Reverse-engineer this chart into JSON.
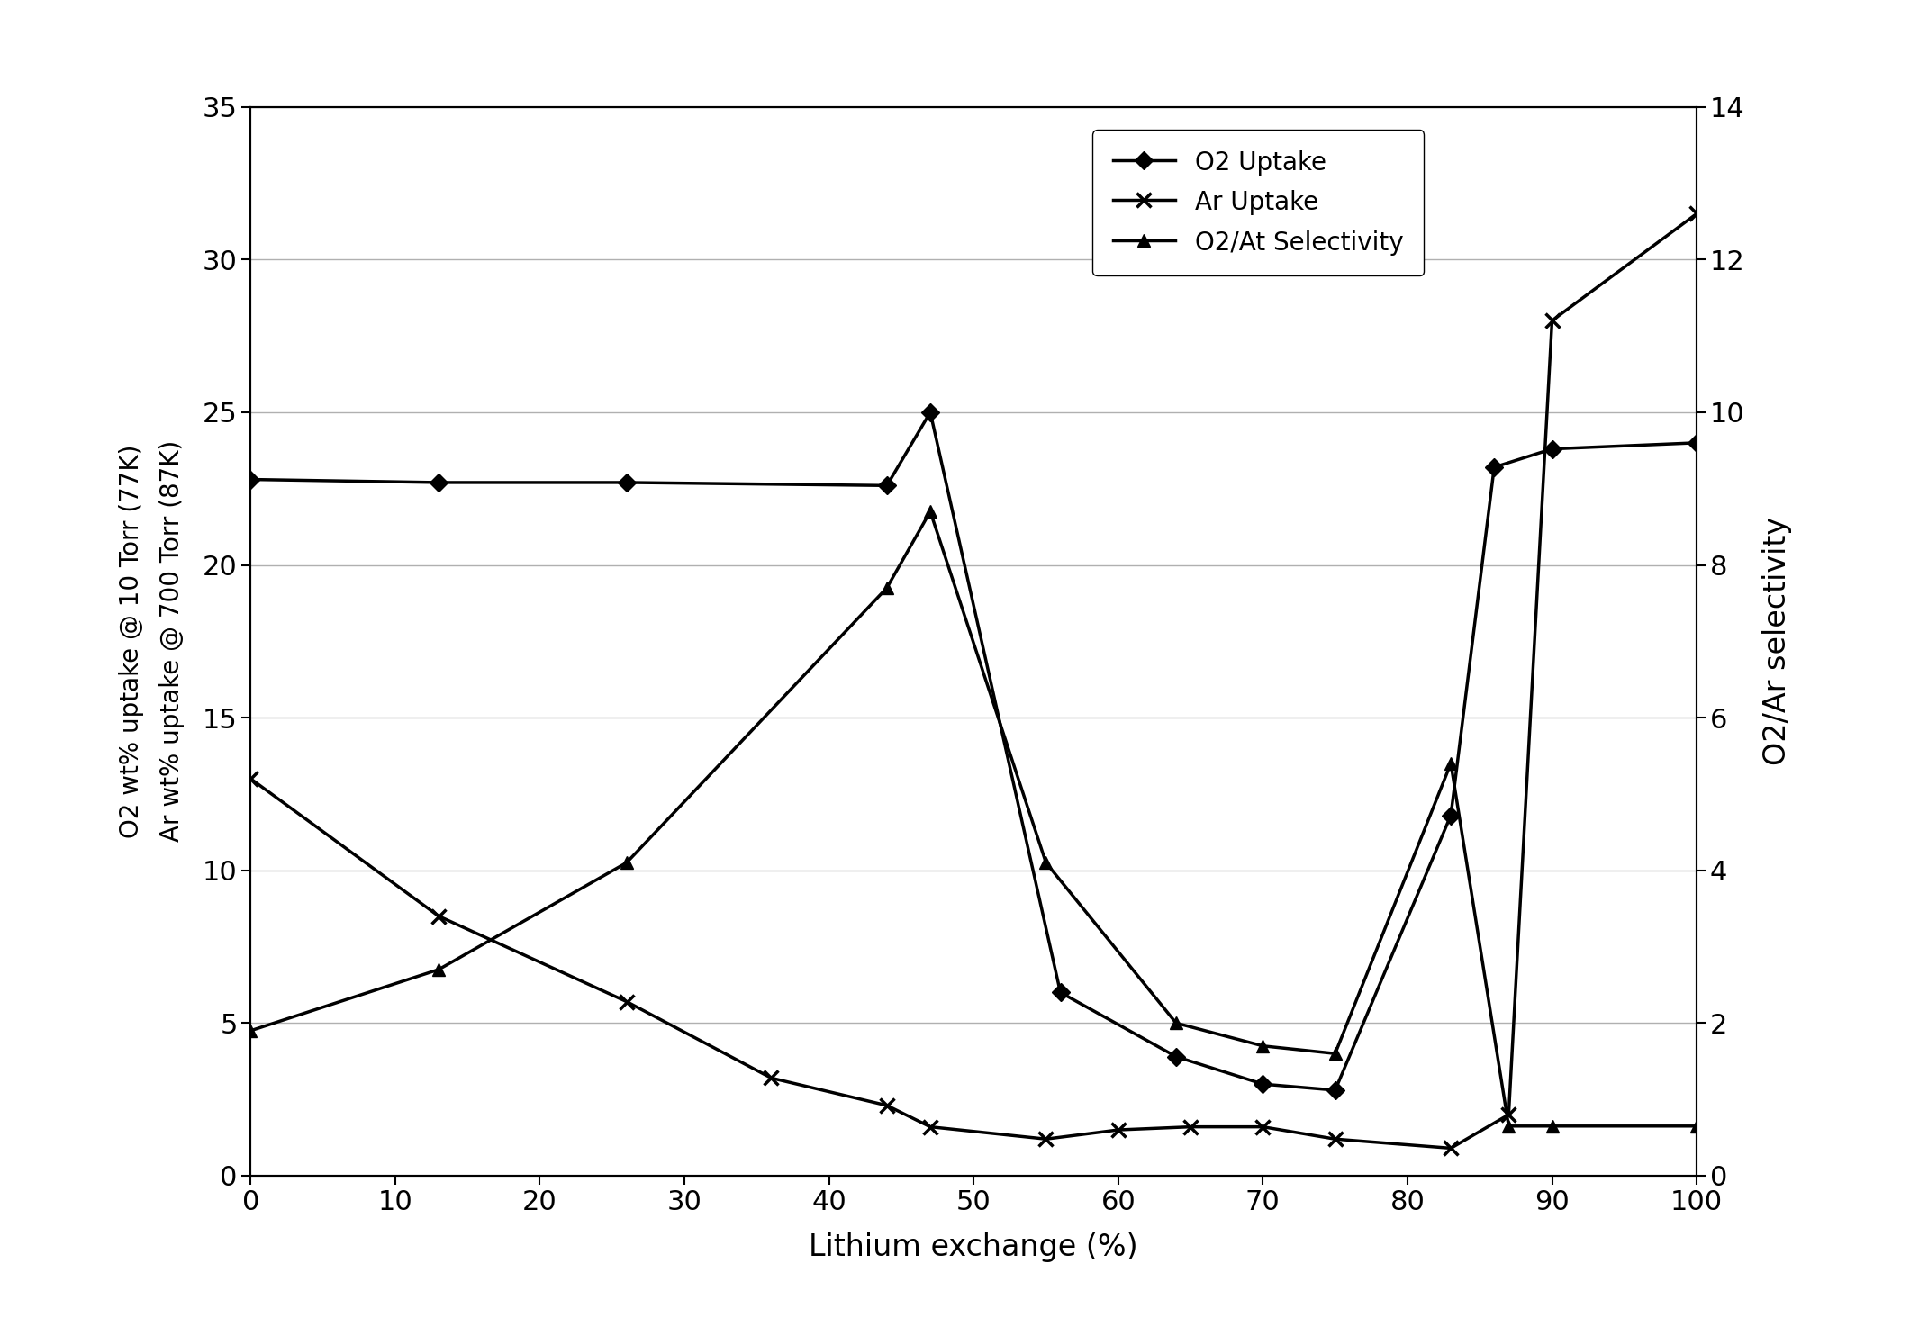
{
  "o2_uptake_x": [
    0,
    13,
    26,
    44,
    47,
    56,
    64,
    70,
    75,
    83,
    86,
    90,
    100
  ],
  "o2_uptake_y": [
    22.8,
    22.7,
    22.7,
    22.6,
    25.0,
    6.0,
    3.9,
    3.0,
    2.8,
    11.8,
    23.2,
    23.8,
    24.0
  ],
  "ar_uptake_x": [
    0,
    13,
    26,
    36,
    44,
    47,
    55,
    60,
    65,
    70,
    75,
    83,
    87,
    90,
    100
  ],
  "ar_uptake_y": [
    13.0,
    8.5,
    5.7,
    3.2,
    2.3,
    1.6,
    1.2,
    1.5,
    1.6,
    1.6,
    1.2,
    0.9,
    2.0,
    28.0,
    31.5
  ],
  "selectivity_x": [
    0,
    13,
    26,
    44,
    47,
    55,
    64,
    70,
    75,
    83,
    87,
    90,
    100
  ],
  "selectivity_y": [
    1.9,
    2.7,
    4.1,
    7.7,
    8.7,
    4.1,
    2.0,
    1.7,
    1.6,
    5.4,
    0.65,
    0.65,
    0.65
  ],
  "xlabel": "Lithium exchange (%)",
  "ylabel_left": "O2 wt% uptake @ 10 Torr (77K)\nAr wt% uptake @ 700 Torr (87K)",
  "ylabel_right": "O2/Ar selectivity",
  "xlim": [
    0,
    100
  ],
  "ylim_left": [
    0,
    35
  ],
  "ylim_right": [
    0,
    14
  ],
  "yticks_left": [
    0,
    5,
    10,
    15,
    20,
    25,
    30,
    35
  ],
  "yticks_right": [
    0,
    2,
    4,
    6,
    8,
    10,
    12,
    14
  ],
  "xticks": [
    0,
    10,
    20,
    30,
    40,
    50,
    60,
    70,
    80,
    90,
    100
  ],
  "legend_labels": [
    "O2 Uptake",
    "Ar Uptake",
    "O2/At Selectivity"
  ],
  "line_color": "#000000",
  "bg_color": "#ffffff",
  "figsize": [
    21.41,
    14.84
  ],
  "dpi": 100
}
